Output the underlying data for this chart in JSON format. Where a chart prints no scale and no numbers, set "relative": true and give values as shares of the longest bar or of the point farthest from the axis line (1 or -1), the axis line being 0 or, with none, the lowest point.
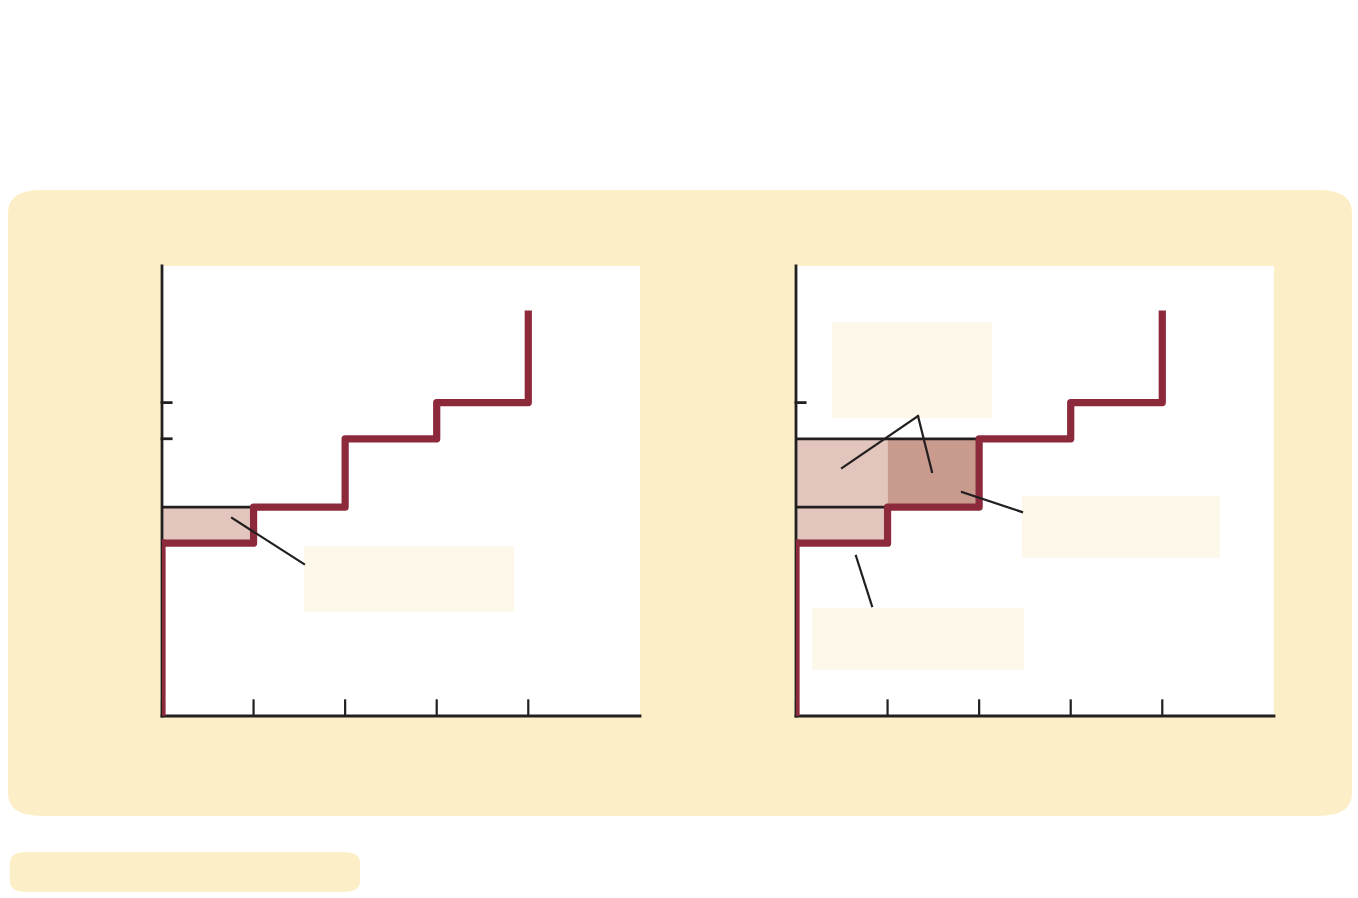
{
  "chart_data": [
    {
      "type": "step",
      "relative": true,
      "categories": [
        null,
        null,
        null,
        null,
        null
      ],
      "grid": false,
      "legend": false,
      "series": [
        {
          "color": "#8c2a3c",
          "values": [
            0.43,
            0.52,
            0.69,
            0.78,
            1.0
          ]
        },
        {
          "type": "line",
          "color": "#231f20",
          "values": [
            0.52,
            0.52,
            null,
            null,
            null
          ]
        }
      ]
    },
    {
      "type": "step",
      "relative": true,
      "categories": [
        null,
        null,
        null,
        null,
        null
      ],
      "grid": false,
      "legend": false,
      "series": [
        {
          "color": "#8c2a3c",
          "values": [
            0.43,
            0.52,
            0.69,
            0.78,
            1.0
          ]
        },
        {
          "type": "line",
          "color": "#231f20",
          "values": [
            0.69,
            0.69,
            0.69,
            null,
            null
          ]
        },
        {
          "type": "line",
          "color": "#231f20",
          "values": [
            0.52,
            0.52,
            null,
            null,
            null
          ]
        }
      ]
    }
  ]
}
